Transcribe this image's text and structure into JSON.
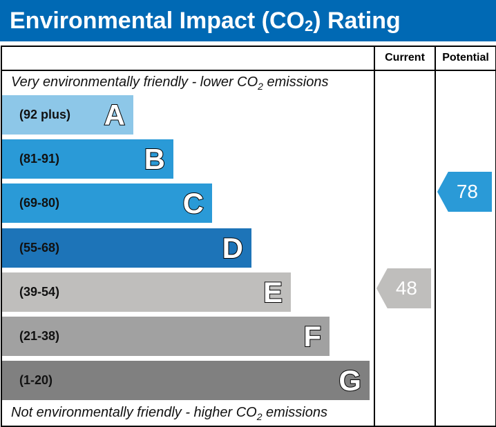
{
  "header": {
    "title_pre": "Environmental Impact (CO",
    "title_sub": "2",
    "title_post": ") Rating"
  },
  "columns": {
    "current": "Current",
    "potential": "Potential"
  },
  "notes": {
    "top_pre": "Very environmentally friendly - lower CO",
    "top_sub": "2",
    "top_post": " emissions",
    "bottom_pre": "Not environmentally friendly - higher CO",
    "bottom_sub": "2",
    "bottom_post": " emissions"
  },
  "chart_data": {
    "type": "bar",
    "bands": [
      {
        "letter": "A",
        "range": "(92 plus)",
        "color": "#8dc7e8"
      },
      {
        "letter": "B",
        "range": "(81-91)",
        "color": "#2a9ad7"
      },
      {
        "letter": "C",
        "range": "(69-80)",
        "color": "#2a9ad7"
      },
      {
        "letter": "D",
        "range": "(55-68)",
        "color": "#1d74b8"
      },
      {
        "letter": "E",
        "range": "(39-54)",
        "color": "#bfbebc"
      },
      {
        "letter": "F",
        "range": "(21-38)",
        "color": "#a1a1a1"
      },
      {
        "letter": "G",
        "range": "(1-20)",
        "color": "#808080"
      }
    ],
    "current": {
      "value": "48",
      "band": "E",
      "color": "#bfbebc"
    },
    "potential": {
      "value": "78",
      "band": "C",
      "color": "#2a9ad7"
    }
  }
}
